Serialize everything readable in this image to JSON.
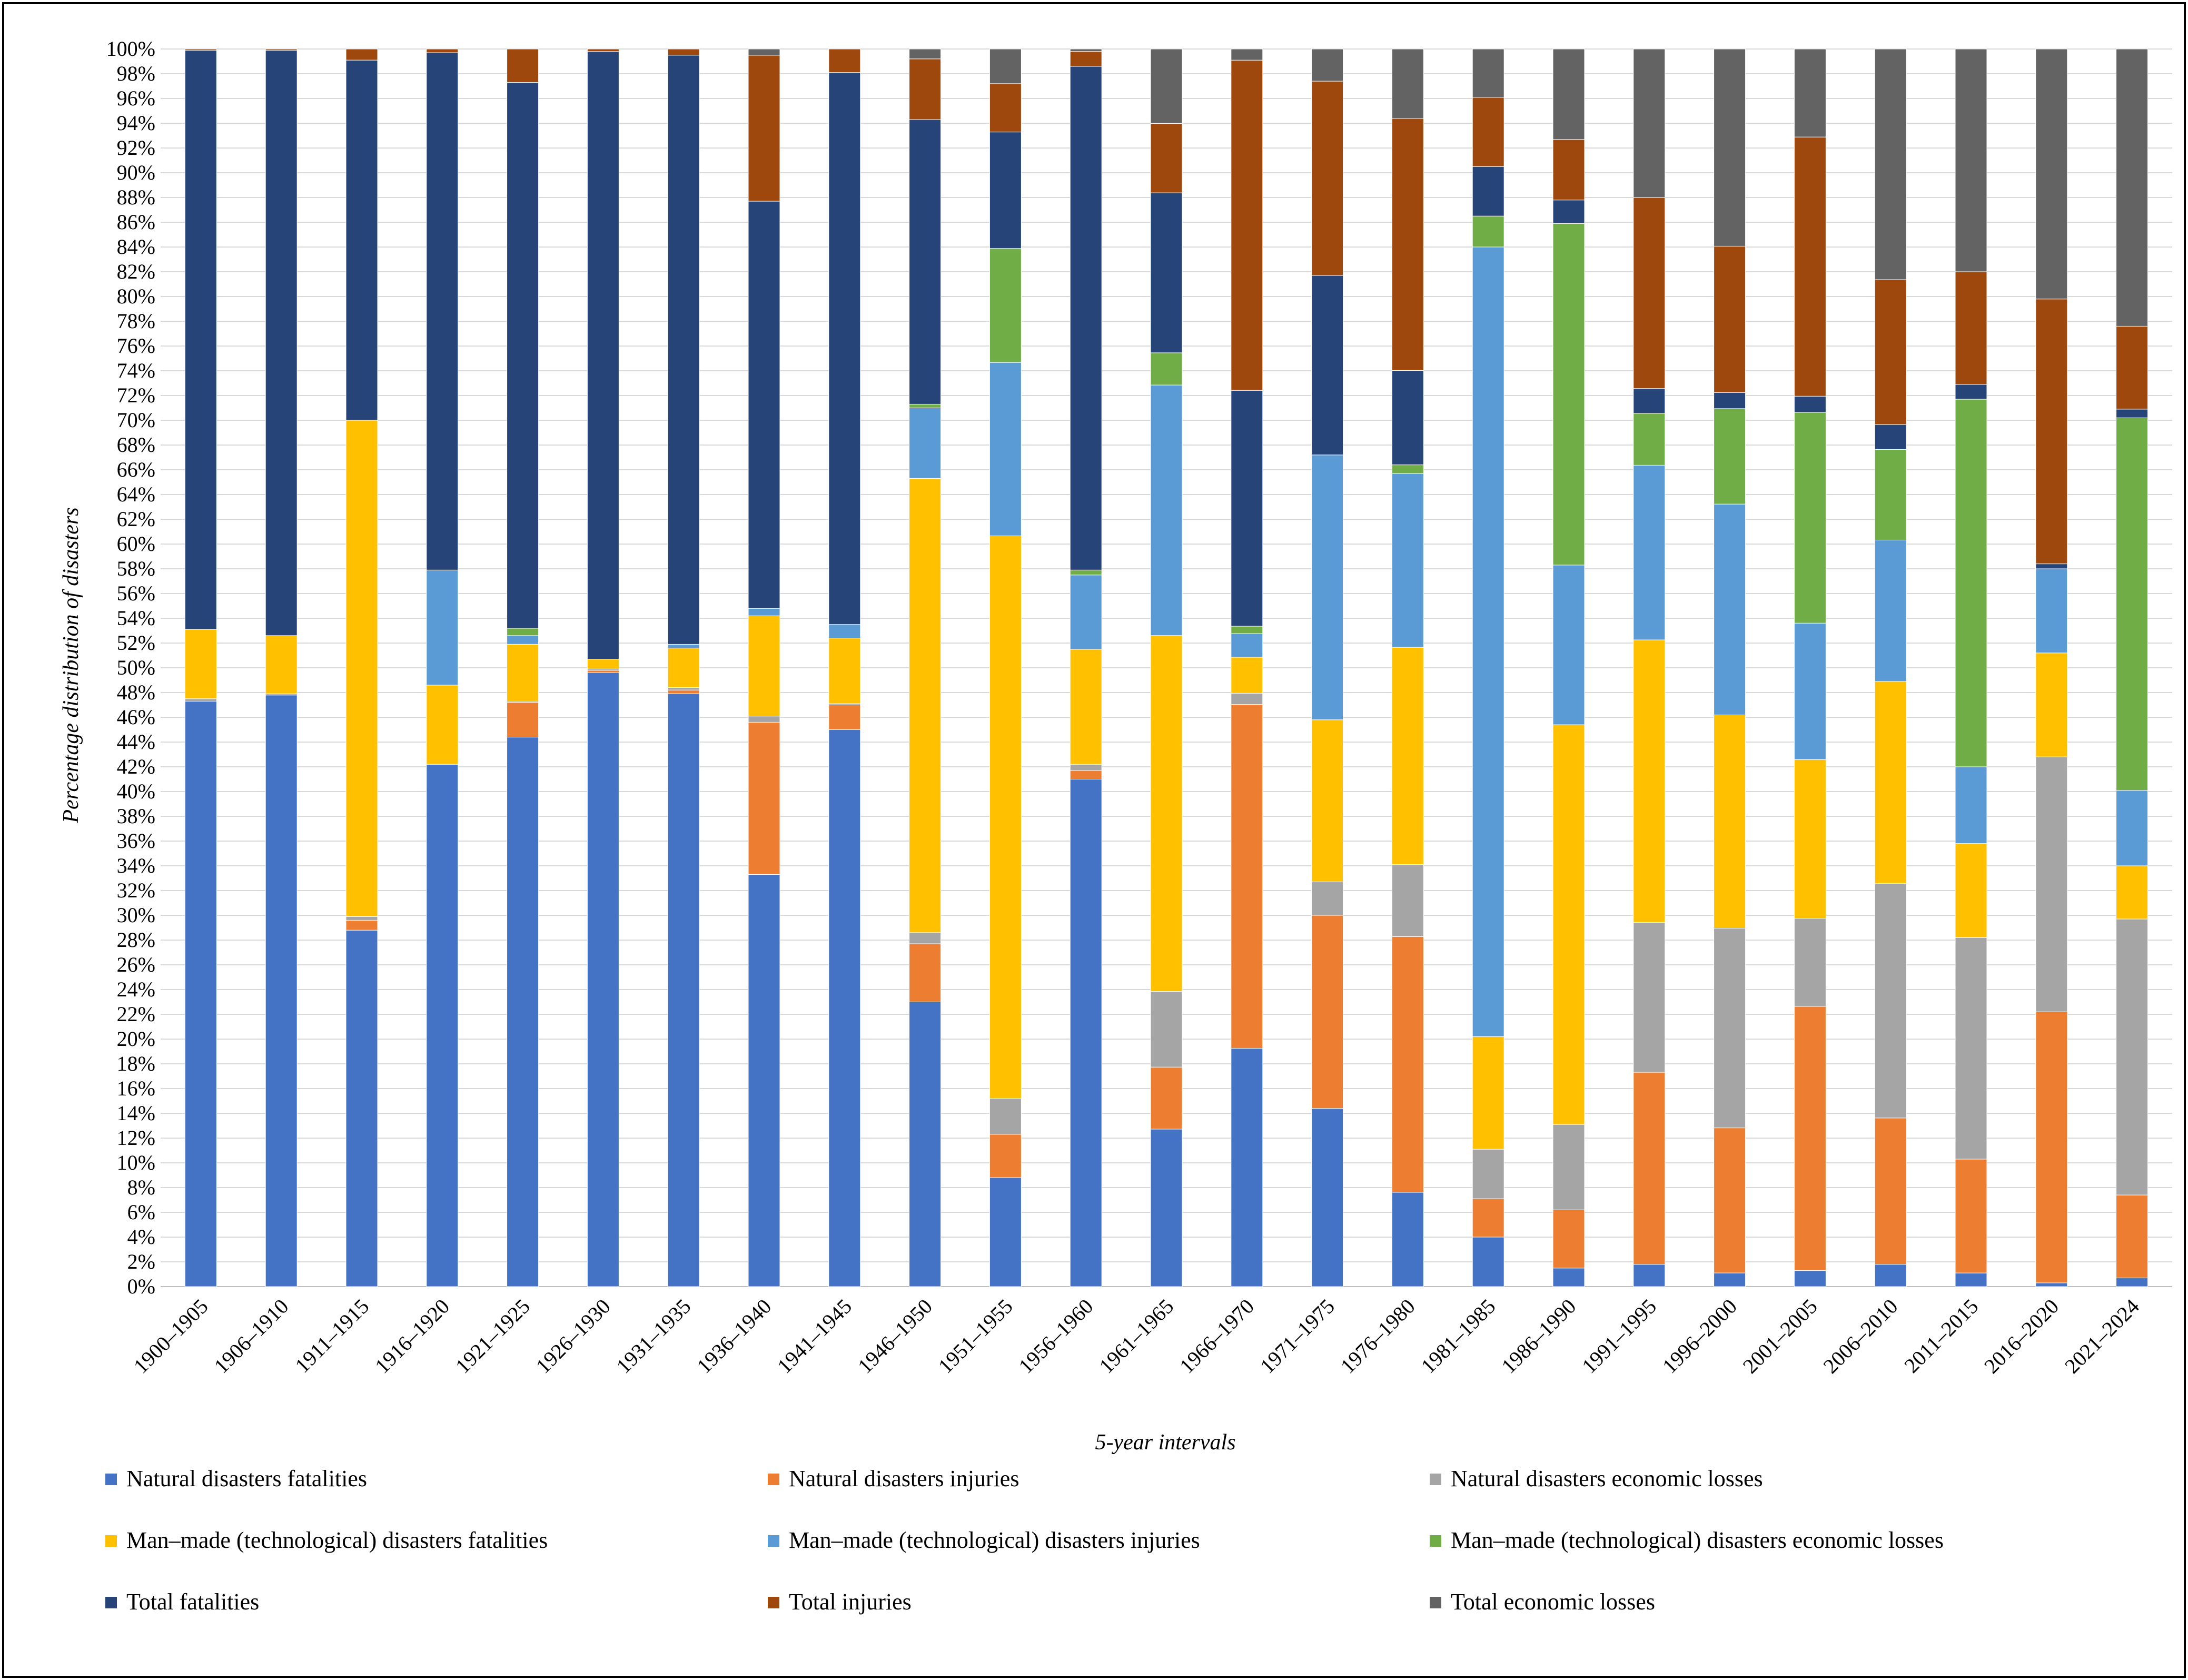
{
  "chart_data": {
    "type": "bar",
    "stacked": true,
    "percent": true,
    "title": "",
    "xlabel": "5-year intervals",
    "ylabel": "Percentage distribution of disasters",
    "ylim": [
      0,
      100
    ],
    "ytick_step": 2,
    "ytick_labels": [
      "0%",
      "2%",
      "4%",
      "6%",
      "8%",
      "10%",
      "12%",
      "14%",
      "16%",
      "18%",
      "20%",
      "22%",
      "24%",
      "26%",
      "28%",
      "30%",
      "32%",
      "34%",
      "36%",
      "38%",
      "40%",
      "42%",
      "44%",
      "46%",
      "48%",
      "50%",
      "52%",
      "54%",
      "56%",
      "58%",
      "60%",
      "62%",
      "64%",
      "66%",
      "68%",
      "70%",
      "72%",
      "74%",
      "76%",
      "78%",
      "80%",
      "82%",
      "84%",
      "86%",
      "88%",
      "90%",
      "92%",
      "94%",
      "96%",
      "98%",
      "100%"
    ],
    "legend_position": "bottom",
    "categories": [
      "1900–1905",
      "1906–1910",
      "1911–1915",
      "1916–1920",
      "1921–1925",
      "1926–1930",
      "1931–1935",
      "1936–1940",
      "1941–1945",
      "1946–1950",
      "1951–1955",
      "1956–1960",
      "1961–1965",
      "1966–1970",
      "1971–1975",
      "1976–1980",
      "1981–1985",
      "1986–1990",
      "1991–1995",
      "1996–2000",
      "2001–2005",
      "2006–2010",
      "2011–2015",
      "2016–2020",
      "2021–2024"
    ],
    "series": [
      {
        "name": "Natural disasters fatalities",
        "color": "#4472C4",
        "values": [
          47.3,
          47.8,
          28.8,
          42.2,
          44.4,
          49.6,
          48.0,
          33.3,
          45.0,
          23.0,
          8.8,
          41.0,
          12.7,
          19.2,
          14.4,
          7.6,
          4.0,
          1.5,
          1.8,
          1.1,
          1.3,
          1.8,
          1.1,
          0.3,
          0.7
        ]
      },
      {
        "name": "Natural disasters injuries",
        "color": "#ED7D31",
        "values": [
          0.0,
          0.0,
          0.8,
          0.0,
          2.8,
          0.2,
          0.3,
          12.3,
          2.0,
          4.7,
          3.5,
          0.7,
          5.0,
          27.7,
          15.6,
          20.6,
          3.1,
          4.7,
          15.5,
          11.7,
          21.3,
          11.8,
          9.2,
          21.9,
          6.7
        ]
      },
      {
        "name": "Natural disasters economic losses",
        "color": "#A5A5A5",
        "values": [
          0.2,
          0.1,
          0.3,
          0.0,
          0.1,
          0.1,
          0.2,
          0.5,
          0.1,
          0.9,
          2.9,
          0.5,
          6.1,
          0.9,
          2.7,
          5.8,
          4.0,
          6.9,
          12.1,
          16.1,
          7.1,
          18.9,
          17.9,
          20.6,
          22.3
        ]
      },
      {
        "name": "Man–made (technological) disasters fatalities",
        "color": "#FFC000",
        "values": [
          5.6,
          4.7,
          40.1,
          6.4,
          4.6,
          0.8,
          3.2,
          8.1,
          5.3,
          36.7,
          45.4,
          9.3,
          28.7,
          2.9,
          13.1,
          17.5,
          9.1,
          32.3,
          22.8,
          17.2,
          12.8,
          16.3,
          7.6,
          8.4,
          4.3
        ]
      },
      {
        "name": "Man–made (technological) disasters injuries",
        "color": "#5B9BD5",
        "values": [
          0.0,
          0.0,
          0.0,
          9.3,
          0.7,
          0.0,
          0.3,
          0.6,
          1.1,
          5.7,
          14.0,
          6.0,
          20.2,
          1.9,
          21.4,
          14.0,
          63.8,
          12.9,
          14.1,
          17.0,
          11.0,
          11.4,
          6.2,
          6.8,
          6.1
        ]
      },
      {
        "name": "Man–made (technological) disasters economic  losses",
        "color": "#70AD47",
        "values": [
          0.0,
          0.0,
          0.0,
          0.0,
          0.6,
          0.0,
          0.0,
          0.0,
          0.0,
          0.3,
          9.2,
          0.4,
          2.6,
          0.6,
          0.0,
          0.7,
          2.5,
          27.6,
          4.2,
          7.7,
          17.0,
          7.3,
          29.7,
          0.0,
          30.1
        ]
      },
      {
        "name": "Total fatalities",
        "color": "#264478",
        "values": [
          46.8,
          47.3,
          29.1,
          41.8,
          44.1,
          49.1,
          47.7,
          32.9,
          44.6,
          23.0,
          9.4,
          40.7,
          12.9,
          19.0,
          14.5,
          7.6,
          4.0,
          1.9,
          2.0,
          1.3,
          1.3,
          2.0,
          1.2,
          0.4,
          0.7
        ]
      },
      {
        "name": "Total injuries",
        "color": "#9E480E",
        "values": [
          0.1,
          0.1,
          0.9,
          0.3,
          2.7,
          0.2,
          0.5,
          11.8,
          1.9,
          4.9,
          3.9,
          1.2,
          5.6,
          26.6,
          15.7,
          20.3,
          5.6,
          4.9,
          15.4,
          11.8,
          20.9,
          11.7,
          9.1,
          21.4,
          6.7
        ]
      },
      {
        "name": "Total economic  losses",
        "color": "#636363",
        "values": [
          0.0,
          0.0,
          0.0,
          0.0,
          0.0,
          0.0,
          0.0,
          0.5,
          0.0,
          0.8,
          2.8,
          0.2,
          6.0,
          0.9,
          2.6,
          5.6,
          3.9,
          7.3,
          12.0,
          15.9,
          7.1,
          18.6,
          18.0,
          20.2,
          22.4
        ]
      }
    ]
  }
}
